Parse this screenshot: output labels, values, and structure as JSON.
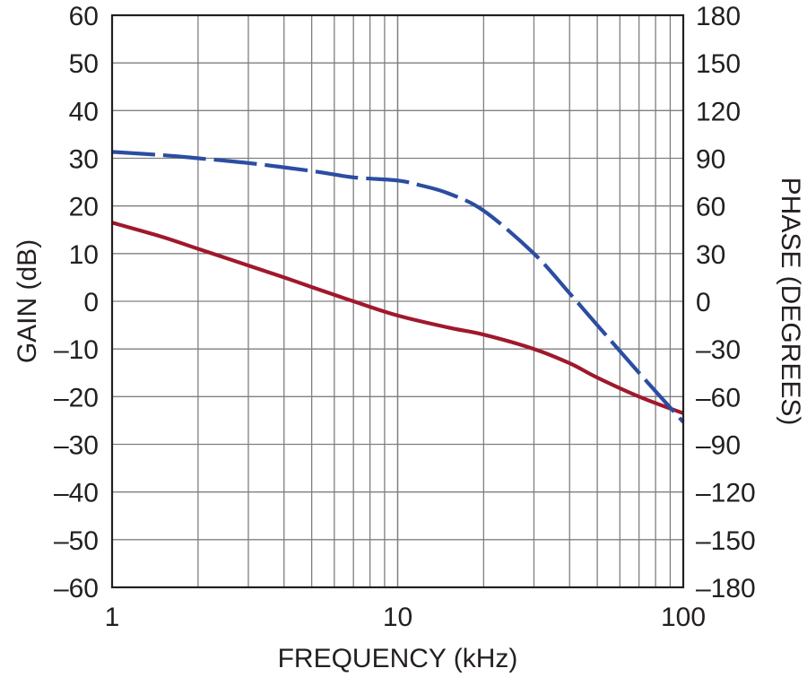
{
  "chart_data": {
    "type": "line",
    "xlabel": "FREQUENCY (kHz)",
    "ylabel_left": "GAIN (dB)",
    "ylabel_right": "PHASE (DEGREES)",
    "x_scale": "log",
    "xlim": [
      1,
      100
    ],
    "x_ticks": [
      1,
      10,
      100
    ],
    "x_tick_labels": [
      "1",
      "10",
      "100"
    ],
    "ylim_left": [
      -60,
      60
    ],
    "y_ticks_left": [
      -60,
      -50,
      -40,
      -30,
      -20,
      -10,
      0,
      10,
      20,
      30,
      40,
      50,
      60
    ],
    "y_tick_labels_left": [
      "–60",
      "–50",
      "–40",
      "–30",
      "–20",
      "–10",
      "0",
      "10",
      "20",
      "30",
      "40",
      "50",
      "60"
    ],
    "ylim_right": [
      -180,
      180
    ],
    "y_ticks_right": [
      -180,
      -150,
      -120,
      -90,
      -60,
      -30,
      0,
      30,
      60,
      90,
      120,
      150,
      180
    ],
    "y_tick_labels_right": [
      "–180",
      "–150",
      "–120",
      "–90",
      "–60",
      "–30",
      "0",
      "30",
      "60",
      "90",
      "120",
      "150",
      "180"
    ],
    "grid": true,
    "series": [
      {
        "axis": "left",
        "style": "solid",
        "color": "#a0182c",
        "x": [
          1,
          1.5,
          2,
          3,
          4,
          5,
          7,
          10,
          15,
          20,
          30,
          40,
          50,
          70,
          100
        ],
        "y": [
          16.5,
          13.5,
          11,
          7.5,
          5,
          3,
          0,
          -3,
          -5.5,
          -7,
          -10,
          -13,
          -16,
          -20,
          -23.5
        ]
      },
      {
        "axis": "right",
        "style": "dashed",
        "color": "#2b4da2",
        "x": [
          1,
          1.5,
          2,
          3,
          5,
          7,
          10,
          12,
          15,
          20,
          30,
          40,
          50,
          70,
          100
        ],
        "y": [
          94,
          92,
          90,
          87,
          82,
          78,
          76,
          73,
          68,
          57,
          30,
          5,
          -15,
          -45,
          -76
        ]
      }
    ]
  }
}
